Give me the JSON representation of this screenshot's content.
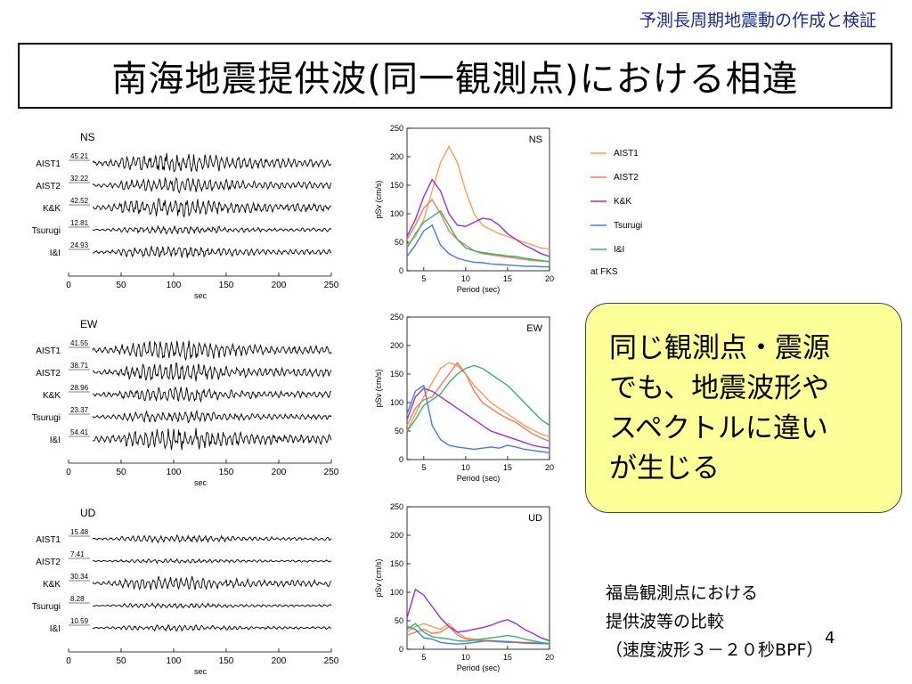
{
  "header": {
    "title": "予測長周期地震動の作成と検証"
  },
  "slide": {
    "title": "南海地震提供波(同一観測点)における相違",
    "page_number": "4"
  },
  "waveforms": [
    {
      "component": "NS",
      "xlabel": "sec",
      "xticks": [
        "0",
        "50",
        "100",
        "150",
        "200",
        "250"
      ],
      "stations": [
        {
          "name": "AIST1",
          "peak": "45.21",
          "amp": 0.55
        },
        {
          "name": "AIST2",
          "peak": "32.22",
          "amp": 0.4
        },
        {
          "name": "K&K",
          "peak": "42.52",
          "amp": 0.5
        },
        {
          "name": "Tsurugi",
          "peak": "12.81",
          "amp": 0.22
        },
        {
          "name": "I&I",
          "peak": "24.93",
          "amp": 0.32
        }
      ]
    },
    {
      "component": "EW",
      "xlabel": "sec",
      "xticks": [
        "0",
        "50",
        "100",
        "150",
        "200",
        "250"
      ],
      "stations": [
        {
          "name": "AIST1",
          "peak": "41.55",
          "amp": 0.55
        },
        {
          "name": "AIST2",
          "peak": "38.71",
          "amp": 0.5
        },
        {
          "name": "K&K",
          "peak": "28.96",
          "amp": 0.4
        },
        {
          "name": "Tsurugi",
          "peak": "23.37",
          "amp": 0.32
        },
        {
          "name": "I&I",
          "peak": "54.41",
          "amp": 0.6
        }
      ]
    },
    {
      "component": "UD",
      "xlabel": "sec",
      "xticks": [
        "0",
        "50",
        "100",
        "150",
        "200",
        "250"
      ],
      "stations": [
        {
          "name": "AIST1",
          "peak": "15.48",
          "amp": 0.2
        },
        {
          "name": "AIST2",
          "peak": "7.41",
          "amp": 0.12
        },
        {
          "name": "K&K",
          "peak": "30.34",
          "amp": 0.38
        },
        {
          "name": "Tsurugi",
          "peak": "8.28",
          "amp": 0.14
        },
        {
          "name": "I&I",
          "peak": "10.59",
          "amp": 0.16
        }
      ]
    }
  ],
  "chart_data": [
    {
      "type": "line",
      "title": "NS",
      "xlabel": "Period (sec)",
      "ylabel": "pSv (cm/s)",
      "xlim": [
        3,
        20
      ],
      "ylim": [
        0,
        250
      ],
      "xticks": [
        5,
        10,
        15,
        20
      ],
      "yticks": [
        0,
        50,
        100,
        150,
        200,
        250
      ],
      "series": [
        {
          "name": "AIST1",
          "color": "#f5a05a",
          "x": [
            3,
            4,
            5,
            6,
            7,
            8,
            9,
            10,
            11,
            12,
            13,
            14,
            15,
            16,
            17,
            18,
            19,
            20
          ],
          "y": [
            45,
            60,
            90,
            140,
            190,
            218,
            190,
            140,
            100,
            80,
            72,
            65,
            60,
            55,
            50,
            45,
            40,
            38
          ]
        },
        {
          "name": "AIST2",
          "color": "#f07a60",
          "x": [
            3,
            4,
            5,
            6,
            7,
            8,
            9,
            10,
            11,
            12,
            13,
            14,
            15,
            16,
            17,
            18,
            19,
            20
          ],
          "y": [
            55,
            80,
            110,
            125,
            100,
            70,
            55,
            45,
            35,
            30,
            28,
            26,
            24,
            22,
            20,
            18,
            17,
            16
          ]
        },
        {
          "name": "K&K",
          "color": "#9a32cd",
          "x": [
            3,
            4,
            5,
            6,
            7,
            8,
            9,
            10,
            11,
            12,
            13,
            14,
            15,
            16,
            17,
            18,
            19,
            20
          ],
          "y": [
            60,
            90,
            130,
            160,
            140,
            100,
            80,
            78,
            85,
            92,
            90,
            80,
            65,
            55,
            45,
            38,
            30,
            25
          ]
        },
        {
          "name": "Tsurugi",
          "color": "#4a78e0",
          "x": [
            3,
            4,
            5,
            6,
            7,
            8,
            9,
            10,
            11,
            12,
            13,
            14,
            15,
            16,
            17,
            18,
            19,
            20
          ],
          "y": [
            25,
            45,
            70,
            80,
            45,
            30,
            22,
            18,
            15,
            14,
            12,
            11,
            10,
            9,
            8,
            8,
            7,
            7
          ]
        },
        {
          "name": "I&I",
          "color": "#3cb06a",
          "x": [
            3,
            4,
            5,
            6,
            7,
            8,
            9,
            10,
            11,
            12,
            13,
            14,
            15,
            16,
            17,
            18,
            19,
            20
          ],
          "y": [
            40,
            65,
            85,
            95,
            105,
            80,
            55,
            40,
            35,
            32,
            30,
            28,
            26,
            25,
            22,
            20,
            18,
            16
          ]
        }
      ]
    },
    {
      "type": "line",
      "title": "EW",
      "xlabel": "Period (sec)",
      "ylabel": "pSv (cm/s)",
      "xlim": [
        3,
        20
      ],
      "ylim": [
        0,
        250
      ],
      "xticks": [
        5,
        10,
        15,
        20
      ],
      "yticks": [
        0,
        50,
        100,
        150,
        200,
        250
      ],
      "series": [
        {
          "name": "AIST1",
          "color": "#f5a05a",
          "x": [
            3,
            4,
            5,
            6,
            7,
            8,
            9,
            10,
            11,
            12,
            13,
            14,
            15,
            16,
            17,
            18,
            19,
            20
          ],
          "y": [
            50,
            80,
            110,
            135,
            160,
            170,
            165,
            150,
            130,
            115,
            100,
            90,
            80,
            70,
            60,
            52,
            45,
            40
          ]
        },
        {
          "name": "AIST2",
          "color": "#f07a60",
          "x": [
            3,
            4,
            5,
            6,
            7,
            8,
            9,
            10,
            11,
            12,
            13,
            14,
            15,
            16,
            17,
            18,
            19,
            20
          ],
          "y": [
            60,
            90,
            105,
            110,
            130,
            150,
            170,
            150,
            120,
            100,
            90,
            80,
            72,
            65,
            55,
            45,
            38,
            32
          ]
        },
        {
          "name": "K&K",
          "color": "#9a32cd",
          "x": [
            3,
            4,
            5,
            6,
            7,
            8,
            9,
            10,
            11,
            12,
            13,
            14,
            15,
            16,
            17,
            18,
            19,
            20
          ],
          "y": [
            70,
            110,
            125,
            120,
            110,
            100,
            90,
            80,
            70,
            60,
            50,
            45,
            40,
            35,
            30,
            25,
            22,
            20
          ]
        },
        {
          "name": "Tsurugi",
          "color": "#4a78e0",
          "x": [
            3,
            4,
            5,
            6,
            7,
            8,
            9,
            10,
            11,
            12,
            13,
            14,
            15,
            16,
            17,
            18,
            19,
            20
          ],
          "y": [
            80,
            120,
            130,
            60,
            35,
            25,
            22,
            20,
            18,
            20,
            22,
            20,
            25,
            22,
            18,
            16,
            14,
            12
          ]
        },
        {
          "name": "I&I",
          "color": "#3cb06a",
          "x": [
            3,
            4,
            5,
            6,
            7,
            8,
            9,
            10,
            11,
            12,
            13,
            14,
            15,
            16,
            17,
            18,
            19,
            20
          ],
          "y": [
            50,
            70,
            95,
            105,
            115,
            135,
            150,
            160,
            165,
            160,
            150,
            140,
            130,
            115,
            100,
            85,
            70,
            60
          ]
        }
      ]
    },
    {
      "type": "line",
      "title": "UD",
      "xlabel": "Period (sec)",
      "ylabel": "pSv (cm/s)",
      "xlim": [
        3,
        20
      ],
      "ylim": [
        0,
        250
      ],
      "xticks": [
        5,
        10,
        15,
        20
      ],
      "yticks": [
        0,
        50,
        100,
        150,
        200,
        250
      ],
      "series": [
        {
          "name": "AIST1",
          "color": "#f5a05a",
          "x": [
            3,
            4,
            5,
            6,
            7,
            8,
            9,
            10,
            11,
            12,
            13,
            14,
            15,
            16,
            17,
            18,
            19,
            20
          ],
          "y": [
            30,
            40,
            45,
            40,
            35,
            45,
            30,
            20,
            18,
            16,
            15,
            14,
            14,
            13,
            12,
            12,
            11,
            10
          ]
        },
        {
          "name": "AIST2",
          "color": "#f07a60",
          "x": [
            3,
            4,
            5,
            6,
            7,
            8,
            9,
            10,
            11,
            12,
            13,
            14,
            15,
            16,
            17,
            18,
            19,
            20
          ],
          "y": [
            25,
            30,
            35,
            28,
            30,
            40,
            25,
            18,
            16,
            15,
            14,
            13,
            12,
            12,
            11,
            10,
            10,
            9
          ]
        },
        {
          "name": "K&K",
          "color": "#9a32cd",
          "x": [
            3,
            4,
            5,
            6,
            7,
            8,
            9,
            10,
            11,
            12,
            13,
            14,
            15,
            16,
            17,
            18,
            19,
            20
          ],
          "y": [
            55,
            105,
            95,
            75,
            55,
            40,
            30,
            32,
            35,
            38,
            42,
            48,
            52,
            45,
            35,
            28,
            20,
            15
          ]
        },
        {
          "name": "Tsurugi",
          "color": "#4a78e0",
          "x": [
            3,
            4,
            5,
            6,
            7,
            8,
            9,
            10,
            11,
            12,
            13,
            14,
            15,
            16,
            17,
            18,
            19,
            20
          ],
          "y": [
            40,
            35,
            20,
            18,
            12,
            10,
            9,
            10,
            12,
            14,
            15,
            14,
            13,
            12,
            11,
            11,
            10,
            10
          ]
        },
        {
          "name": "I&I",
          "color": "#3cb06a",
          "x": [
            3,
            4,
            5,
            6,
            7,
            8,
            9,
            10,
            11,
            12,
            13,
            14,
            15,
            16,
            17,
            18,
            19,
            20
          ],
          "y": [
            35,
            45,
            30,
            22,
            20,
            18,
            15,
            14,
            16,
            18,
            20,
            22,
            24,
            22,
            18,
            15,
            12,
            10
          ]
        }
      ]
    }
  ],
  "legend": {
    "items": [
      {
        "label": "AIST1",
        "color": "#f5a05a"
      },
      {
        "label": "AIST2",
        "color": "#f07a60"
      },
      {
        "label": "K&K",
        "color": "#9a32cd"
      },
      {
        "label": "Tsurugi",
        "color": "#4a78e0"
      },
      {
        "label": "I&I",
        "color": "#3cb06a"
      }
    ],
    "note": "at FKS"
  },
  "callout": {
    "lines": [
      "同じ観測点・震源",
      "でも、地震波形や",
      "スペクトルに違い",
      "が生じる"
    ]
  },
  "caption": {
    "lines": [
      "福島観測点における",
      "提供波等の比較",
      "（速度波形３－２０秒BPF）"
    ]
  }
}
